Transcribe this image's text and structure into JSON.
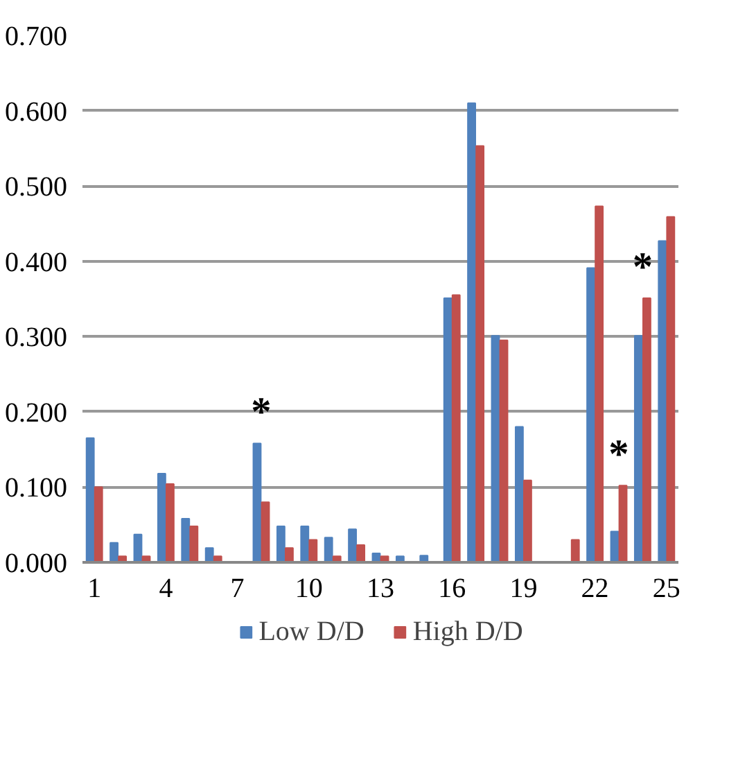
{
  "chart_data": {
    "type": "bar",
    "x": [
      1,
      2,
      3,
      4,
      5,
      6,
      7,
      8,
      9,
      10,
      11,
      12,
      13,
      14,
      15,
      16,
      17,
      18,
      19,
      20,
      21,
      22,
      23,
      24,
      25
    ],
    "series": [
      {
        "name": "Low D/D",
        "color": "#4f81bd",
        "values": [
          0.165,
          0.026,
          0.037,
          0.118,
          0.058,
          0.019,
          null,
          0.158,
          0.048,
          0.048,
          0.033,
          0.044,
          0.012,
          0.008,
          0.009,
          0.351,
          0.61,
          0.301,
          0.18,
          null,
          null,
          0.391,
          0.041,
          0.301,
          0.427
        ]
      },
      {
        "name": "High D/D",
        "color": "#c0504d",
        "values": [
          0.1,
          0.008,
          0.008,
          0.104,
          0.048,
          0.008,
          null,
          0.08,
          0.019,
          0.03,
          0.008,
          0.023,
          0.008,
          null,
          null,
          0.355,
          0.553,
          0.295,
          0.109,
          null,
          0.03,
          0.473,
          0.102,
          0.351,
          0.459
        ]
      }
    ],
    "xlim": [
      0.5,
      25.5
    ],
    "xticks": [
      1,
      4,
      7,
      10,
      13,
      16,
      19,
      22,
      25
    ],
    "ylim": [
      0,
      0.7
    ],
    "yticks": [
      {
        "value": 0,
        "label": "0.000"
      },
      {
        "value": 0.1,
        "label": "0.100"
      },
      {
        "value": 0.2,
        "label": "0.200"
      },
      {
        "value": 0.3,
        "label": "0.300"
      },
      {
        "value": 0.4,
        "label": "0.400"
      },
      {
        "value": 0.5,
        "label": "0.500"
      },
      {
        "value": 0.6,
        "label": "0.600"
      },
      {
        "value": 0.7,
        "label": "0.700"
      }
    ],
    "grid": "y",
    "legend": "bottom",
    "annotations": [
      {
        "text": "*",
        "x": 8,
        "y": 0.158
      },
      {
        "text": "*",
        "x": 23,
        "y": 0.102
      },
      {
        "text": "*",
        "x": 24,
        "y": 0.351
      }
    ]
  }
}
